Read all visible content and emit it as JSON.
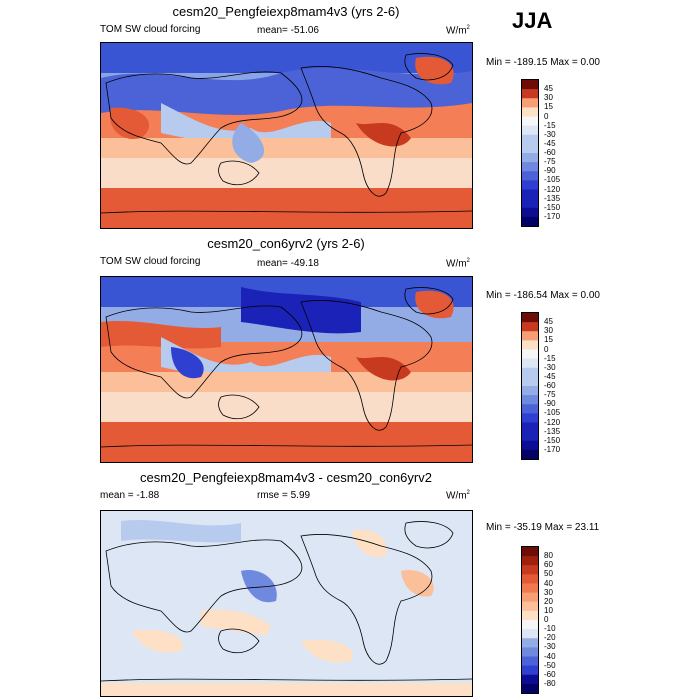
{
  "season_label": "JJA",
  "colors": {
    "positive": [
      "#fde0c5",
      "#fbc09a",
      "#f79f74",
      "#ef7a52",
      "#e45a36",
      "#c83a20",
      "#a0200f",
      "#6e0c06"
    ],
    "negative": [
      "#f6f6f6",
      "#dce6f4",
      "#b7cbef",
      "#93ace6",
      "#6f89df",
      "#4b63d6",
      "#2f3fcf",
      "#1a22b8",
      "#0d0d94",
      "#020266"
    ],
    "land_outline": "#000000"
  },
  "panels": [
    {
      "title": "cesm20_Pengfeiexp8mam4v3 (yrs 2-6)",
      "left_label": "TOM SW cloud forcing",
      "mid_label": "mean= -51.06",
      "units": "W/m",
      "units_sup": "2",
      "minmax": "Min = -189.15 Max =   0.00"
    },
    {
      "title": "cesm20_con6yrv2 (yrs 2-6)",
      "left_label": "TOM SW cloud forcing",
      "mid_label": "mean= -49.18",
      "units": "W/m",
      "units_sup": "2",
      "minmax": "Min = -186.54 Max =   0.00"
    },
    {
      "title": "cesm20_Pengfeiexp8mam4v3 - cesm20_con6yrv2",
      "left_label": "mean =  -1.88",
      "mid_label": "rmse =   5.99",
      "units": "W/m",
      "units_sup": "2",
      "minmax": "Min = -35.19 Max =  23.11"
    }
  ],
  "chart_data": [
    {
      "type": "heatmap",
      "title": "cesm20_Pengfeiexp8mam4v3 (yrs 2-6)",
      "variable": "TOM SW cloud forcing",
      "mean": -51.06,
      "min": -189.15,
      "max": 0.0,
      "units": "W/m2",
      "colorbar_levels": [
        45,
        30,
        15,
        0,
        -15,
        -30,
        -45,
        -60,
        -75,
        -90,
        -105,
        -120,
        -135,
        -150,
        -170
      ]
    },
    {
      "type": "heatmap",
      "title": "cesm20_con6yrv2 (yrs 2-6)",
      "variable": "TOM SW cloud forcing",
      "mean": -49.18,
      "min": -186.54,
      "max": 0.0,
      "units": "W/m2",
      "colorbar_levels": [
        45,
        30,
        15,
        0,
        -15,
        -30,
        -45,
        -60,
        -75,
        -90,
        -105,
        -120,
        -135,
        -150,
        -170
      ]
    },
    {
      "type": "heatmap",
      "title": "cesm20_Pengfeiexp8mam4v3 - cesm20_con6yrv2",
      "mean": -1.88,
      "rmse": 5.99,
      "min": -35.19,
      "max": 23.11,
      "units": "W/m2",
      "colorbar_levels": [
        80,
        60,
        50,
        40,
        30,
        20,
        10,
        0,
        -10,
        -20,
        -30,
        -40,
        -50,
        -60,
        -80
      ]
    }
  ]
}
